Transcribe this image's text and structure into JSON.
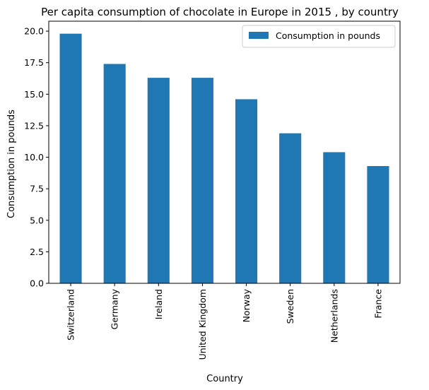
{
  "chart_data": {
    "type": "bar",
    "title": "Per capita consumption of chocolate in Europe in 2015 , by country",
    "xlabel": "Country",
    "ylabel": "Consumption in pounds",
    "categories": [
      "Switzerland",
      "Germany",
      "Ireland",
      "United Kingdom",
      "Norway",
      "Sweden",
      "Netherlands",
      "France"
    ],
    "series": [
      {
        "name": "Consumption in pounds",
        "values": [
          19.8,
          17.4,
          16.3,
          16.3,
          14.6,
          11.9,
          10.4,
          9.3
        ],
        "color": "#1f77b4"
      }
    ],
    "ylim": [
      0,
      20.79
    ],
    "yticks": [
      0.0,
      2.5,
      5.0,
      7.5,
      10.0,
      12.5,
      15.0,
      17.5,
      20.0
    ],
    "ytick_labels": [
      "0.0",
      "2.5",
      "5.0",
      "7.5",
      "10.0",
      "12.5",
      "15.0",
      "17.5",
      "20.0"
    ],
    "grid": false,
    "legend_position": "top-right"
  }
}
